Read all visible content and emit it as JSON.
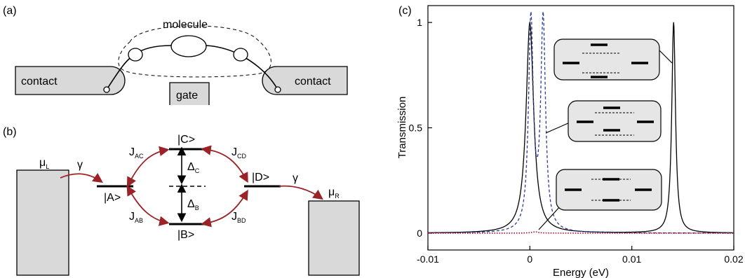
{
  "panels": {
    "a": {
      "label": "(a)",
      "molecule_label": "molecule",
      "contact_left": "contact",
      "contact_right": "contact",
      "gate": "gate"
    },
    "b": {
      "label": "(b)",
      "mu_left": "μ",
      "mu_left_sub": "L",
      "mu_right": "μ",
      "mu_right_sub": "R",
      "gamma_left": "γ",
      "gamma_right": "γ",
      "state_A": "|A>",
      "state_B": "|B>",
      "state_C": "|C>",
      "state_D": "|D>",
      "J": "J",
      "J_AC_sub": "AC",
      "J_AB_sub": "AB",
      "J_CD_sub": "CD",
      "J_BD_sub": "BD",
      "delta": "Δ",
      "delta_C_sub": "C",
      "delta_B_sub": "B",
      "arrow_color": "#9b2226"
    },
    "c": {
      "label": "(c)"
    }
  },
  "chart_data": {
    "type": "line",
    "xlabel": "Energy (eV)",
    "ylabel": "Transmission",
    "xlim": [
      -0.01,
      0.02
    ],
    "ylim": [
      -0.08,
      1.08
    ],
    "xticks": [
      -0.01,
      0,
      0.01,
      0.02
    ],
    "xtick_labels": [
      "-0.01",
      "0",
      "0.01",
      "0.02"
    ],
    "yticks": [
      0,
      0.5,
      1
    ],
    "ytick_labels": [
      "0",
      "0.5",
      "1"
    ],
    "grid": false,
    "series": [
      {
        "style": "solid",
        "color": "#000000",
        "lorentzian_peaks": [
          {
            "center": 0.0,
            "height": 1.0,
            "halfwidth": 0.00045
          },
          {
            "center": 0.0141,
            "height": 1.0,
            "halfwidth": 0.00022
          }
        ]
      },
      {
        "style": "dashed",
        "color": "#2b3a9b",
        "lorentzian_peaks": [
          {
            "center": 0.0001,
            "height": 1.0,
            "halfwidth": 0.00028
          },
          {
            "center": 0.0013,
            "height": 1.0,
            "halfwidth": 0.00028
          }
        ]
      },
      {
        "style": "dotted",
        "color": "#b0002a",
        "lorentzian_peaks": [
          {
            "center": 0.0005,
            "height": 0.006,
            "halfwidth": 0.0004
          }
        ]
      }
    ]
  }
}
